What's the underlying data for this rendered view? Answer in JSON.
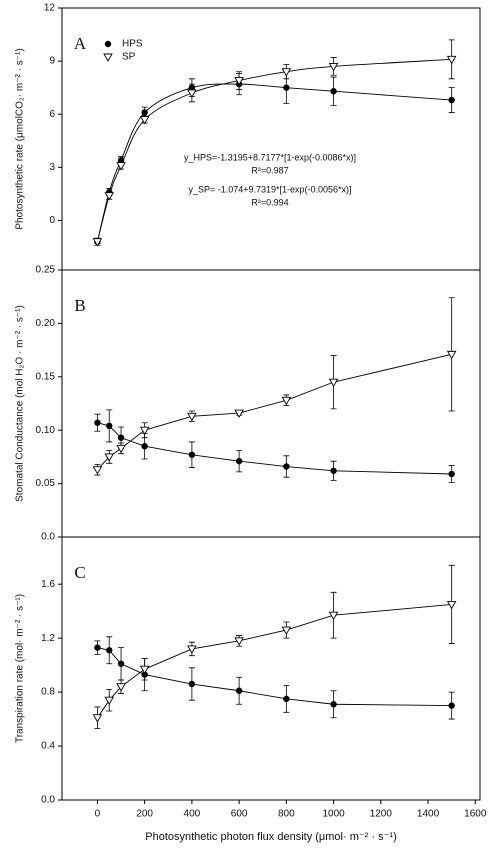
{
  "chart_data": [
    {
      "type": "line",
      "panel": "A",
      "ylabel": "Photosynthetic rate (μmolCO₂· m⁻² · s⁻¹)",
      "x": [
        0,
        50,
        100,
        200,
        400,
        600,
        800,
        1000,
        1500
      ],
      "xlim": [
        -150,
        1620
      ],
      "ylim": [
        -2.8,
        12
      ],
      "yticks": [
        0,
        3,
        6,
        9,
        12
      ],
      "smooth": true,
      "legend": "upper left",
      "annotations": [
        "y_HPS=-1.3195+8.7177*[1-exp(-0.0086*x)]",
        "R²=0.987",
        "y_SP= -1.074+9.7319*[1-exp(-0.0056*x)]",
        "R²=0.994"
      ],
      "series": [
        {
          "name": "HPS",
          "color": "#000000",
          "marker": "circle",
          "values": [
            -1.2,
            1.6,
            3.4,
            6.1,
            7.5,
            7.7,
            7.5,
            7.3,
            6.8
          ],
          "errors": [
            0.2,
            0.2,
            0.2,
            0.3,
            0.5,
            0.6,
            0.9,
            0.8,
            0.7
          ]
        },
        {
          "name": "SP",
          "color": "#000000",
          "marker": "triangle-down",
          "values": [
            -1.2,
            1.4,
            3.1,
            5.7,
            7.2,
            7.9,
            8.4,
            8.7,
            9.1
          ],
          "errors": [
            0.1,
            0.2,
            0.2,
            0.2,
            0.5,
            0.5,
            0.4,
            0.5,
            1.1
          ]
        }
      ]
    },
    {
      "type": "line",
      "panel": "B",
      "ylabel": "Stomatal Conductance (mol H₂O · m⁻² · s⁻¹)",
      "x": [
        0,
        50,
        100,
        200,
        400,
        600,
        800,
        1000,
        1500
      ],
      "xlim": [
        -150,
        1620
      ],
      "ylim": [
        0,
        0.25
      ],
      "yticks": [
        {
          "value": 0,
          "label": "0.0"
        },
        0.05,
        {
          "value": 0.1,
          "label": "0.10"
        },
        0.15,
        {
          "value": 0.2,
          "label": "0.20"
        },
        0.25
      ],
      "series": [
        {
          "color": "#000000",
          "marker": "circle",
          "values": [
            0.107,
            0.104,
            0.093,
            0.085,
            0.077,
            0.071,
            0.066,
            0.062,
            0.059
          ],
          "errors": [
            0.008,
            0.015,
            0.01,
            0.012,
            0.012,
            0.01,
            0.01,
            0.009,
            0.008
          ]
        },
        {
          "color": "#000000",
          "marker": "triangle-down",
          "values": [
            0.063,
            0.075,
            0.083,
            0.1,
            0.113,
            0.116,
            0.128,
            0.145,
            0.171
          ],
          "errors": [
            0.005,
            0.006,
            0.005,
            0.007,
            0.005,
            0.002,
            0.005,
            0.025,
            0.053
          ]
        }
      ]
    },
    {
      "type": "line",
      "panel": "C",
      "ylabel": "Transpiration rate (mol· m⁻² · s⁻¹)",
      "xlabel": "Photosynthetic photon flux density (μmol· m⁻² · s⁻¹)",
      "x": [
        0,
        50,
        100,
        200,
        400,
        600,
        800,
        1000,
        1500
      ],
      "xlim": [
        -150,
        1620
      ],
      "xticks": [
        0,
        200,
        400,
        600,
        800,
        1000,
        1200,
        1400,
        1600
      ],
      "ylim": [
        0,
        1.95
      ],
      "yticks": [
        {
          "value": 0,
          "label": "0.0"
        },
        0.4,
        0.8,
        1.2,
        1.6
      ],
      "series": [
        {
          "color": "#000000",
          "marker": "circle",
          "values": [
            1.13,
            1.11,
            1.01,
            0.93,
            0.86,
            0.81,
            0.75,
            0.71,
            0.7
          ],
          "errors": [
            0.05,
            0.1,
            0.12,
            0.12,
            0.12,
            0.1,
            0.1,
            0.1,
            0.1
          ]
        },
        {
          "color": "#000000",
          "marker": "triangle-down",
          "values": [
            0.61,
            0.74,
            0.84,
            0.97,
            1.12,
            1.18,
            1.26,
            1.37,
            1.45
          ],
          "errors": [
            0.08,
            0.08,
            0.05,
            0.08,
            0.05,
            0.04,
            0.06,
            0.17,
            0.29
          ]
        }
      ]
    }
  ]
}
